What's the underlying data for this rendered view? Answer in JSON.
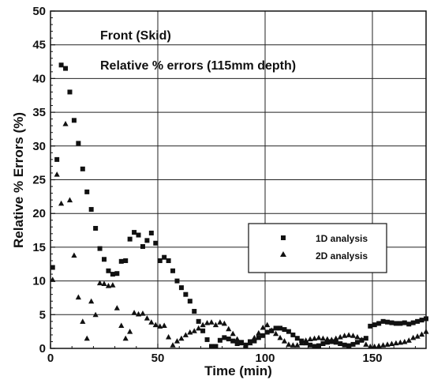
{
  "chart_data": {
    "type": "scatter",
    "xlabel": "Time (min)",
    "ylabel": "Relative % Errors (%)",
    "xlim": [
      0,
      175
    ],
    "ylim": [
      0,
      50
    ],
    "xticks": [
      0,
      50,
      100,
      150
    ],
    "yticks": [
      0,
      5,
      10,
      15,
      20,
      25,
      30,
      35,
      40,
      45,
      50
    ],
    "grid": true,
    "annotations": [
      "Front (Skid)",
      "Relative % errors (115mm depth)"
    ],
    "legend": {
      "placement": "center-right"
    },
    "series": [
      {
        "name": "1D analysis",
        "marker": "square",
        "color": "#111111",
        "points": [
          [
            1,
            12
          ],
          [
            3,
            28
          ],
          [
            5,
            42
          ],
          [
            7,
            41.5
          ],
          [
            9,
            38
          ],
          [
            11,
            33.8
          ],
          [
            13,
            30.4
          ],
          [
            15,
            26.6
          ],
          [
            17,
            23.2
          ],
          [
            19,
            20.6
          ],
          [
            21,
            17.8
          ],
          [
            23,
            14.8
          ],
          [
            25,
            13.2
          ],
          [
            27,
            11.5
          ],
          [
            29,
            11
          ],
          [
            31,
            11.1
          ],
          [
            33,
            12.9
          ],
          [
            35,
            13
          ],
          [
            37,
            16.2
          ],
          [
            39,
            17.2
          ],
          [
            41,
            16.8
          ],
          [
            43,
            15.1
          ],
          [
            45,
            16
          ],
          [
            47,
            17.1
          ],
          [
            49,
            15.6
          ],
          [
            51,
            13
          ],
          [
            53,
            13.5
          ],
          [
            55,
            13
          ],
          [
            57,
            11.5
          ],
          [
            59,
            10
          ],
          [
            61,
            9
          ],
          [
            63,
            8
          ],
          [
            65,
            7
          ],
          [
            67,
            5.5
          ],
          [
            69,
            4
          ],
          [
            71,
            2.6
          ],
          [
            73,
            1.3
          ],
          [
            75,
            0.3
          ],
          [
            77,
            0.3
          ],
          [
            79,
            1.2
          ],
          [
            81,
            1.6
          ],
          [
            83,
            1.4
          ],
          [
            85,
            1.1
          ],
          [
            87,
            0.7
          ],
          [
            89,
            0.9
          ],
          [
            91,
            0.5
          ],
          [
            93,
            1
          ],
          [
            95,
            1.1
          ],
          [
            97,
            1.6
          ],
          [
            99,
            1.9
          ],
          [
            101,
            2.4
          ],
          [
            103,
            2.6
          ],
          [
            105,
            3
          ],
          [
            107,
            3
          ],
          [
            109,
            2.8
          ],
          [
            111,
            2.5
          ],
          [
            113,
            2
          ],
          [
            115,
            1.5
          ],
          [
            117,
            1.1
          ],
          [
            119,
            0.8
          ],
          [
            121,
            0.5
          ],
          [
            123,
            0.3
          ],
          [
            125,
            0.4
          ],
          [
            127,
            0.7
          ],
          [
            129,
            0.9
          ],
          [
            131,
            1
          ],
          [
            133,
            0.9
          ],
          [
            135,
            0.7
          ],
          [
            137,
            0.5
          ],
          [
            139,
            0.4
          ],
          [
            141,
            0.6
          ],
          [
            143,
            0.9
          ],
          [
            145,
            1.2
          ],
          [
            147,
            1.5
          ],
          [
            149,
            3.3
          ],
          [
            151,
            3.5
          ],
          [
            153,
            3.7
          ],
          [
            155,
            4
          ],
          [
            157,
            3.9
          ],
          [
            159,
            3.8
          ],
          [
            161,
            3.7
          ],
          [
            163,
            3.7
          ],
          [
            165,
            3.8
          ],
          [
            167,
            3.6
          ],
          [
            169,
            3.8
          ],
          [
            171,
            4
          ],
          [
            173,
            4.2
          ],
          [
            175,
            4.4
          ]
        ]
      },
      {
        "name": "2D analysis",
        "marker": "triangle",
        "color": "#111111",
        "points": [
          [
            1,
            10.2
          ],
          [
            3,
            25.8
          ],
          [
            5,
            21.5
          ],
          [
            7,
            33.3
          ],
          [
            9,
            22
          ],
          [
            11,
            13.8
          ],
          [
            13,
            7.6
          ],
          [
            15,
            4
          ],
          [
            17,
            1.5
          ],
          [
            19,
            7
          ],
          [
            21,
            5
          ],
          [
            23,
            9.7
          ],
          [
            25,
            9.6
          ],
          [
            27,
            9.3
          ],
          [
            29,
            9.4
          ],
          [
            31,
            6
          ],
          [
            33,
            3.4
          ],
          [
            35,
            1.5
          ],
          [
            37,
            2.5
          ],
          [
            39,
            5.3
          ],
          [
            41,
            5.1
          ],
          [
            43,
            5.2
          ],
          [
            45,
            4.5
          ],
          [
            47,
            3.9
          ],
          [
            49,
            3.5
          ],
          [
            51,
            3.3
          ],
          [
            53,
            3.4
          ],
          [
            55,
            1.7
          ],
          [
            57,
            0.5
          ],
          [
            59,
            1.1
          ],
          [
            61,
            1.5
          ],
          [
            63,
            2
          ],
          [
            65,
            2.4
          ],
          [
            67,
            2.6
          ],
          [
            69,
            3
          ],
          [
            71,
            3.5
          ],
          [
            73,
            3.8
          ],
          [
            75,
            3.9
          ],
          [
            77,
            3.5
          ],
          [
            79,
            3.9
          ],
          [
            81,
            3.7
          ],
          [
            83,
            2.9
          ],
          [
            85,
            2.2
          ],
          [
            87,
            1.4
          ],
          [
            89,
            0.8
          ],
          [
            91,
            0.3
          ],
          [
            93,
            0.8
          ],
          [
            95,
            1.6
          ],
          [
            97,
            2.3
          ],
          [
            99,
            3.1
          ],
          [
            101,
            3.5
          ],
          [
            103,
            2.7
          ],
          [
            105,
            2.2
          ],
          [
            107,
            1.6
          ],
          [
            109,
            1.1
          ],
          [
            111,
            0.6
          ],
          [
            113,
            0.5
          ],
          [
            115,
            0.5
          ],
          [
            117,
            0.8
          ],
          [
            119,
            1.2
          ],
          [
            121,
            1.4
          ],
          [
            123,
            1.5
          ],
          [
            125,
            1.6
          ],
          [
            127,
            1.5
          ],
          [
            129,
            1.4
          ],
          [
            131,
            1.3
          ],
          [
            133,
            1.5
          ],
          [
            135,
            1.7
          ],
          [
            137,
            1.9
          ],
          [
            139,
            2
          ],
          [
            141,
            1.9
          ],
          [
            143,
            1.7
          ],
          [
            145,
            1.3
          ],
          [
            147,
            0.6
          ],
          [
            149,
            0.3
          ],
          [
            151,
            0.3
          ],
          [
            153,
            0.4
          ],
          [
            155,
            0.5
          ],
          [
            157,
            0.6
          ],
          [
            159,
            0.7
          ],
          [
            161,
            0.8
          ],
          [
            163,
            0.9
          ],
          [
            165,
            1
          ],
          [
            167,
            1.2
          ],
          [
            169,
            1.6
          ],
          [
            171,
            1.8
          ],
          [
            173,
            2.1
          ],
          [
            175,
            2.5
          ]
        ]
      }
    ]
  }
}
